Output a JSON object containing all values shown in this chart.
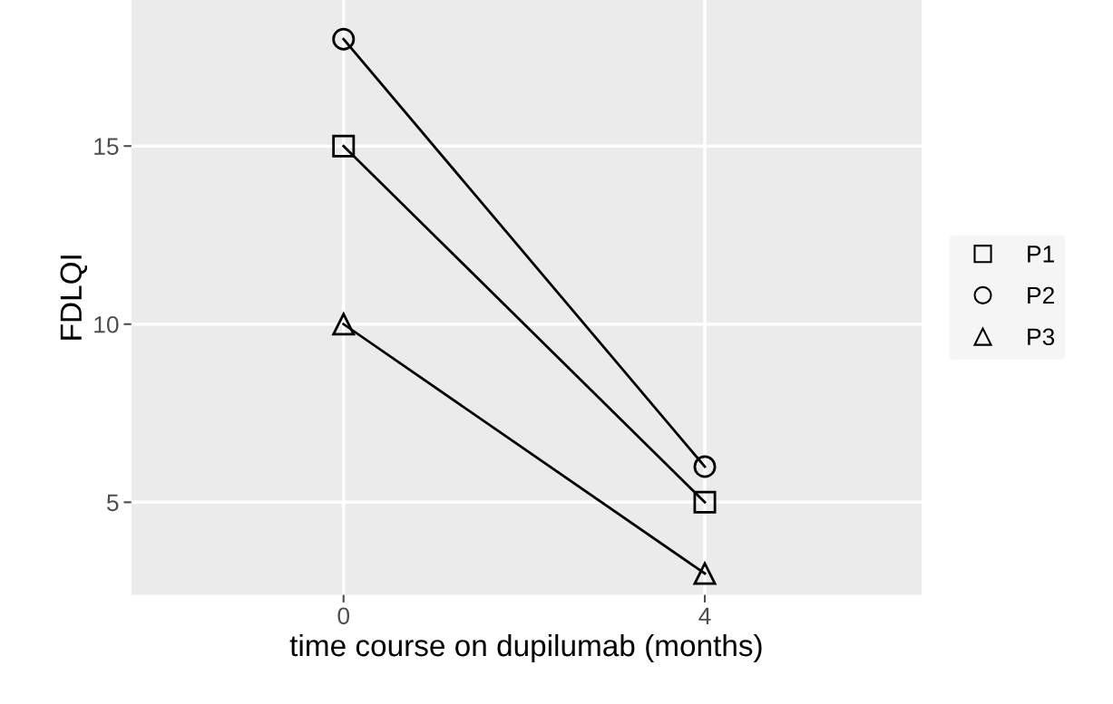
{
  "chart_data": {
    "type": "line",
    "xlabel": "time course on dupilumab (months)",
    "ylabel": "FDLQI",
    "x": [
      0,
      4
    ],
    "xlim": [
      -2.35,
      6.4
    ],
    "xticks": [
      0,
      4
    ],
    "ylim": [
      2.4,
      19.1
    ],
    "yticks": [
      5,
      10,
      15
    ],
    "series": [
      {
        "name": "P1",
        "color": "#000000",
        "values": [
          15,
          5
        ],
        "marker": "square"
      },
      {
        "name": "P2",
        "color": "#000000",
        "values": [
          18,
          6
        ],
        "marker": "circle"
      },
      {
        "name": "P3",
        "color": "#000000",
        "values": [
          10,
          3
        ],
        "marker": "triangle"
      }
    ],
    "grid": true,
    "legend": "right",
    "line_style": "solid"
  }
}
